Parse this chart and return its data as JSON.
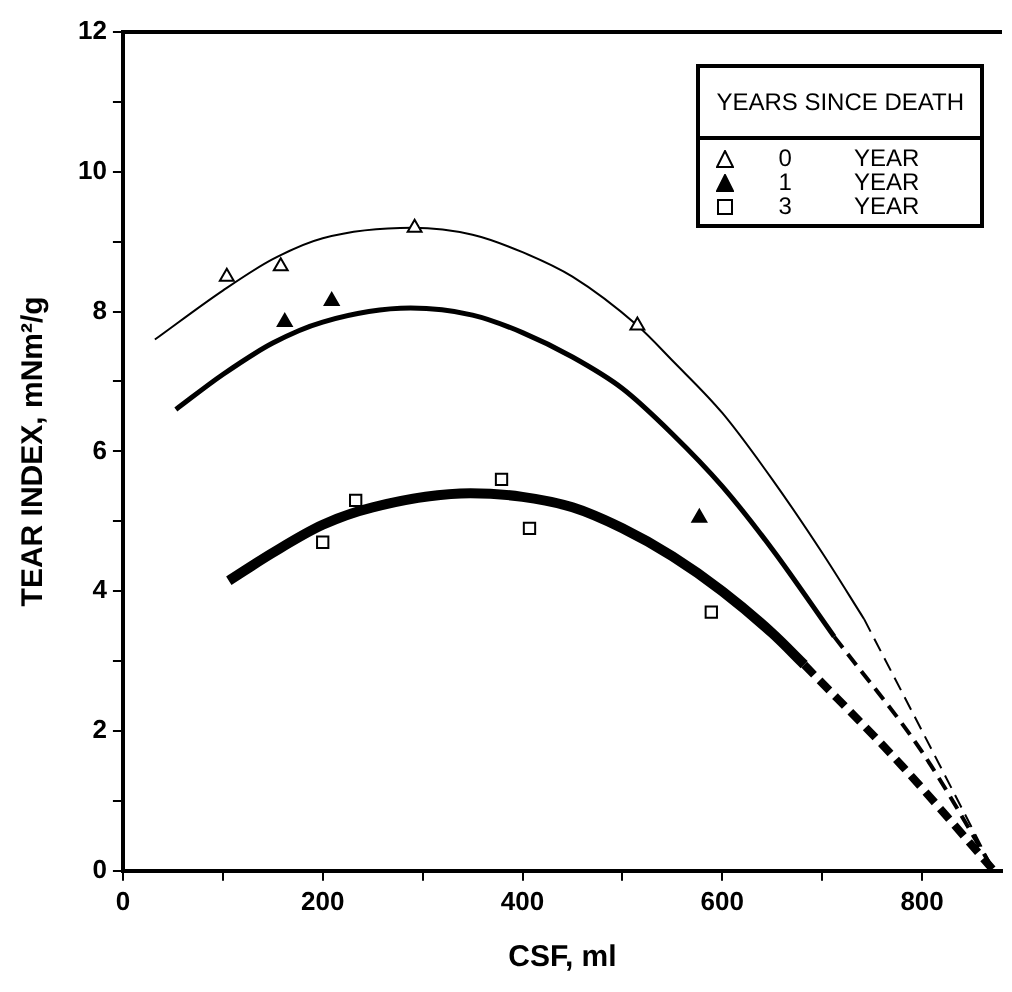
{
  "chart_data": {
    "type": "scatter",
    "xlabel": "CSF, ml",
    "ylabel": "TEAR INDEX, mNm²/g",
    "legend_title": "YEARS SINCE DEATH",
    "legend": "top right",
    "grid": false,
    "xlim": [
      0,
      880
    ],
    "ylim": [
      0,
      12
    ],
    "xticks": [
      0,
      {
        "value": 100,
        "label": null
      },
      200,
      {
        "value": 300,
        "label": null
      },
      400,
      {
        "value": 500,
        "label": null
      },
      600,
      {
        "value": 700,
        "label": null
      },
      800
    ],
    "yticks": [
      0,
      {
        "value": 1,
        "label": null
      },
      2,
      {
        "value": 3,
        "label": null
      },
      4,
      {
        "value": 5,
        "label": null
      },
      6,
      {
        "value": 7,
        "label": null
      },
      8,
      {
        "value": 9,
        "label": null
      },
      10,
      {
        "value": 11,
        "label": null
      },
      12
    ],
    "series": [
      {
        "name": "0 YEAR",
        "type": "scatter",
        "marker": "triangle",
        "color": "#000000",
        "x": [
          104,
          158,
          292,
          515
        ],
        "values": [
          8.5,
          8.65,
          9.2,
          7.8
        ]
      },
      {
        "name": "1 YEAR",
        "type": "scatter",
        "marker": "triangle",
        "color": "#000000",
        "x": [
          162,
          209,
          577
        ],
        "values": [
          7.85,
          8.15,
          5.05
        ]
      },
      {
        "name": "3 YEAR",
        "type": "scatter",
        "marker": "square",
        "color": "#000000",
        "x": [
          200,
          233,
          379,
          407,
          589
        ],
        "values": [
          4.7,
          5.3,
          5.6,
          4.9,
          3.7
        ]
      },
      {
        "type": "line",
        "marker": "none",
        "line_style": "solid",
        "color": "#000000",
        "x": [
          32,
          100,
          150,
          200,
          290,
          350,
          400,
          450,
          515,
          550,
          600,
          650,
          700,
          742
        ],
        "values": [
          7.6,
          8.3,
          8.75,
          9.05,
          9.2,
          9.1,
          8.85,
          8.5,
          7.8,
          7.3,
          6.55,
          5.6,
          4.55,
          3.6
        ]
      },
      {
        "type": "line",
        "marker": "none",
        "line_style": "dashed",
        "color": "#000000",
        "x": [
          742,
          800,
          872
        ],
        "values": [
          3.6,
          2.0,
          0
        ]
      },
      {
        "type": "line",
        "marker": "none",
        "line_style": "solid",
        "color": "#000000",
        "x": [
          53,
          100,
          150,
          200,
          288,
          350,
          400,
          450,
          500,
          550,
          600,
          650,
          712
        ],
        "values": [
          6.6,
          7.1,
          7.55,
          7.85,
          8.05,
          7.95,
          7.7,
          7.35,
          6.9,
          6.25,
          5.5,
          4.6,
          3.35
        ]
      },
      {
        "type": "line",
        "marker": "none",
        "line_style": "dashed",
        "color": "#000000",
        "x": [
          712,
          800,
          872
        ],
        "values": [
          3.35,
          1.7,
          0
        ]
      },
      {
        "type": "line",
        "marker": "none",
        "line_style": "solid",
        "color": "#000000",
        "x": [
          106,
          150,
          200,
          250,
          348,
          400,
          450,
          500,
          550,
          600,
          650,
          682
        ],
        "values": [
          4.15,
          4.55,
          4.95,
          5.2,
          5.4,
          5.35,
          5.2,
          4.9,
          4.5,
          4.0,
          3.4,
          2.95
        ]
      },
      {
        "type": "line",
        "marker": "none",
        "line_style": "dashed",
        "color": "#000000",
        "x": [
          682,
          780,
          872
        ],
        "values": [
          2.95,
          1.5,
          0
        ]
      }
    ]
  }
}
